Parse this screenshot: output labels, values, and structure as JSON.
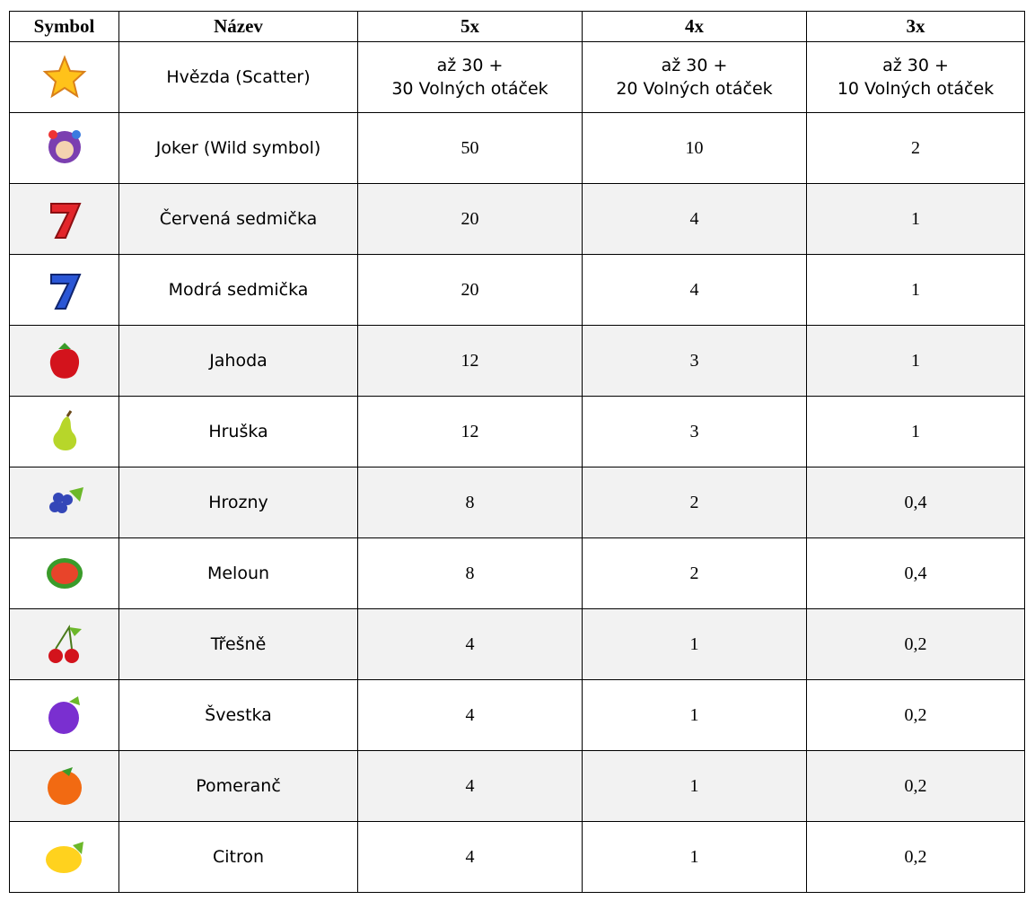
{
  "table": {
    "header": [
      "Symbol",
      "Název",
      "5x",
      "4x",
      "3x"
    ],
    "rows": [
      {
        "name": "Hvězda (Scatter)",
        "pays": [
          [
            "až 30 +",
            "30 Volných otáček"
          ],
          [
            "až 30 +",
            "20 Volných otáček"
          ],
          [
            "až 30 +",
            "10 Volných otáček"
          ]
        ]
      },
      {
        "name": "Joker (Wild symbol)",
        "pays": [
          "50",
          "10",
          "2"
        ]
      },
      {
        "name": "Červená sedmička",
        "pays": [
          "20",
          "4",
          "1"
        ]
      },
      {
        "name": "Modrá sedmička",
        "pays": [
          "20",
          "4",
          "1"
        ]
      },
      {
        "name": "Jahoda",
        "pays": [
          "12",
          "3",
          "1"
        ]
      },
      {
        "name": "Hruška",
        "pays": [
          "12",
          "3",
          "1"
        ]
      },
      {
        "name": "Hrozny",
        "pays": [
          "8",
          "2",
          "0,4"
        ]
      },
      {
        "name": "Meloun",
        "pays": [
          "8",
          "2",
          "0,4"
        ]
      },
      {
        "name": "Třešně",
        "pays": [
          "4",
          "1",
          "0,2"
        ]
      },
      {
        "name": "Švestka",
        "pays": [
          "4",
          "1",
          "0,2"
        ]
      },
      {
        "name": "Pomeranč",
        "pays": [
          "4",
          "1",
          "0,2"
        ]
      },
      {
        "name": "Citron",
        "pays": [
          "4",
          "1",
          "0,2"
        ]
      }
    ]
  }
}
